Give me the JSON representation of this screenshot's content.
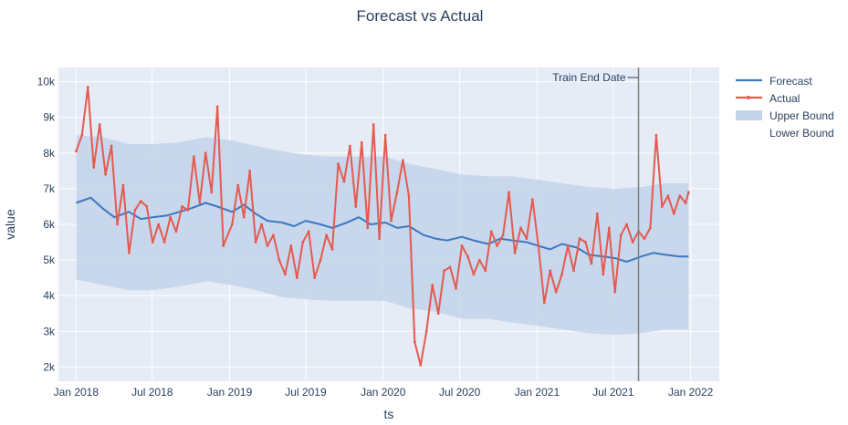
{
  "chart_data": {
    "type": "line",
    "title": "Forecast vs Actual",
    "xlabel": "ts",
    "ylabel": "value",
    "xlim": [
      "2017-11-20",
      "2022-03-10"
    ],
    "ylim": [
      1600,
      10400
    ],
    "x_ticks": [
      "Jan 2018",
      "Jul 2018",
      "Jan 2019",
      "Jul 2019",
      "Jan 2020",
      "Jul 2020",
      "Jan 2021",
      "Jul 2021",
      "Jan 2022"
    ],
    "y_ticks": [
      "2k",
      "3k",
      "4k",
      "5k",
      "6k",
      "7k",
      "8k",
      "9k",
      "10k"
    ],
    "y_tick_values": [
      2000,
      3000,
      4000,
      5000,
      6000,
      7000,
      8000,
      9000,
      10000
    ],
    "x_tick_dates": [
      "2018-01-01",
      "2018-07-01",
      "2019-01-01",
      "2019-07-01",
      "2020-01-01",
      "2020-07-01",
      "2021-01-01",
      "2021-07-01",
      "2022-01-01"
    ],
    "grid": true,
    "legend_position": "top-right",
    "annotation": {
      "label": "Train End Date",
      "date": "2021-08-30"
    },
    "colors": {
      "forecast": "#3a78c2",
      "actual": "#e45a4f",
      "band": "#c3d4ea",
      "plot_bg": "#e5ecf6",
      "grid": "#ffffff",
      "vline": "#7f7f7f"
    },
    "series": [
      {
        "name": "Forecast",
        "x": [
          "2018-01-01",
          "2018-02-05",
          "2018-03-05",
          "2018-04-02",
          "2018-05-07",
          "2018-06-04",
          "2018-07-02",
          "2018-08-06",
          "2018-09-03",
          "2018-10-01",
          "2018-11-05",
          "2018-12-03",
          "2019-01-07",
          "2019-02-04",
          "2019-03-04",
          "2019-04-01",
          "2019-05-06",
          "2019-06-03",
          "2019-07-01",
          "2019-08-05",
          "2019-09-02",
          "2019-10-07",
          "2019-11-04",
          "2019-12-02",
          "2020-01-06",
          "2020-02-03",
          "2020-03-02",
          "2020-04-06",
          "2020-05-04",
          "2020-06-01",
          "2020-07-06",
          "2020-08-03",
          "2020-09-07",
          "2020-10-05",
          "2020-11-02",
          "2020-12-07",
          "2021-01-04",
          "2021-02-01",
          "2021-03-01",
          "2021-04-05",
          "2021-05-03",
          "2021-06-07",
          "2021-07-05",
          "2021-08-02",
          "2021-09-06",
          "2021-10-04",
          "2021-11-01",
          "2021-12-06",
          "2021-12-27"
        ],
        "values": [
          6600,
          6750,
          6450,
          6200,
          6350,
          6150,
          6200,
          6250,
          6350,
          6450,
          6600,
          6500,
          6350,
          6550,
          6300,
          6100,
          6050,
          5950,
          6100,
          6000,
          5900,
          6050,
          6200,
          6000,
          6050,
          5900,
          5950,
          5700,
          5600,
          5550,
          5650,
          5550,
          5450,
          5600,
          5550,
          5500,
          5400,
          5300,
          5450,
          5350,
          5150,
          5100,
          5050,
          4950,
          5100,
          5200,
          5150,
          5100,
          5100
        ]
      },
      {
        "name": "Actual",
        "x": [
          "2018-01-01",
          "2018-01-15",
          "2018-01-29",
          "2018-02-12",
          "2018-02-26",
          "2018-03-12",
          "2018-03-26",
          "2018-04-09",
          "2018-04-23",
          "2018-05-07",
          "2018-05-21",
          "2018-06-04",
          "2018-06-18",
          "2018-07-02",
          "2018-07-16",
          "2018-07-30",
          "2018-08-13",
          "2018-08-27",
          "2018-09-10",
          "2018-09-24",
          "2018-10-08",
          "2018-10-22",
          "2018-11-05",
          "2018-11-19",
          "2018-12-03",
          "2018-12-17",
          "2019-01-07",
          "2019-01-21",
          "2019-02-04",
          "2019-02-18",
          "2019-03-04",
          "2019-03-18",
          "2019-04-01",
          "2019-04-15",
          "2019-04-29",
          "2019-05-13",
          "2019-05-27",
          "2019-06-10",
          "2019-06-24",
          "2019-07-08",
          "2019-07-22",
          "2019-08-05",
          "2019-08-19",
          "2019-09-02",
          "2019-09-16",
          "2019-09-30",
          "2019-10-14",
          "2019-10-28",
          "2019-11-11",
          "2019-11-25",
          "2019-12-09",
          "2019-12-23",
          "2020-01-06",
          "2020-01-20",
          "2020-02-03",
          "2020-02-17",
          "2020-03-02",
          "2020-03-16",
          "2020-03-30",
          "2020-04-13",
          "2020-04-27",
          "2020-05-11",
          "2020-05-25",
          "2020-06-08",
          "2020-06-22",
          "2020-07-06",
          "2020-07-20",
          "2020-08-03",
          "2020-08-17",
          "2020-08-31",
          "2020-09-14",
          "2020-09-28",
          "2020-10-12",
          "2020-10-26",
          "2020-11-09",
          "2020-11-23",
          "2020-12-07",
          "2020-12-21",
          "2021-01-04",
          "2021-01-18",
          "2021-02-01",
          "2021-02-15",
          "2021-03-01",
          "2021-03-15",
          "2021-03-29",
          "2021-04-12",
          "2021-04-26",
          "2021-05-10",
          "2021-05-24",
          "2021-06-07",
          "2021-06-21",
          "2021-07-05",
          "2021-07-19",
          "2021-08-02",
          "2021-08-16",
          "2021-08-30",
          "2021-09-13",
          "2021-09-27",
          "2021-10-11",
          "2021-10-25",
          "2021-11-08",
          "2021-11-22",
          "2021-12-06",
          "2021-12-20",
          "2021-12-27"
        ],
        "values": [
          8050,
          8500,
          9850,
          7600,
          8800,
          7400,
          8200,
          6000,
          7100,
          5200,
          6400,
          6650,
          6500,
          5500,
          6000,
          5500,
          6200,
          5800,
          6500,
          6400,
          7900,
          6600,
          8000,
          6900,
          9300,
          5400,
          6000,
          7100,
          6200,
          7500,
          5500,
          6000,
          5400,
          5700,
          5000,
          4600,
          5400,
          4500,
          5500,
          5800,
          4500,
          5000,
          5700,
          5300,
          7700,
          7200,
          8200,
          6500,
          8300,
          5900,
          8800,
          5600,
          8500,
          6100,
          6900,
          7800,
          6800,
          2700,
          2050,
          3000,
          4300,
          3500,
          4700,
          4800,
          4200,
          5400,
          5100,
          4600,
          5000,
          4700,
          5800,
          5400,
          5700,
          6900,
          5200,
          5900,
          5600,
          6700,
          5400,
          3800,
          4700,
          4100,
          4600,
          5400,
          4700,
          5600,
          5500,
          4900,
          6300,
          4600,
          5900,
          4100,
          5700,
          6000,
          5500,
          5800,
          5600,
          5900,
          8500,
          6500,
          6800,
          6300,
          6800,
          6600,
          6900
        ]
      },
      {
        "name": "Upper Bound",
        "x": [
          "2018-01-01",
          "2018-03-05",
          "2018-05-07",
          "2018-07-02",
          "2018-09-03",
          "2018-11-05",
          "2019-01-07",
          "2019-03-04",
          "2019-05-06",
          "2019-07-01",
          "2019-09-02",
          "2019-11-04",
          "2020-01-06",
          "2020-03-02",
          "2020-05-04",
          "2020-07-06",
          "2020-09-07",
          "2020-11-02",
          "2021-01-04",
          "2021-03-01",
          "2021-05-03",
          "2021-07-05",
          "2021-09-06",
          "2021-11-01",
          "2021-12-27"
        ],
        "values": [
          8500,
          8450,
          8250,
          8250,
          8300,
          8450,
          8350,
          8200,
          8050,
          7950,
          7900,
          7900,
          7900,
          7700,
          7550,
          7400,
          7350,
          7350,
          7250,
          7150,
          7050,
          7000,
          7050,
          7150,
          7150
        ]
      },
      {
        "name": "Lower Bound",
        "x": [
          "2018-01-01",
          "2018-03-05",
          "2018-05-07",
          "2018-07-02",
          "2018-09-03",
          "2018-11-05",
          "2019-01-07",
          "2019-03-04",
          "2019-05-06",
          "2019-07-01",
          "2019-09-02",
          "2019-11-04",
          "2020-01-06",
          "2020-03-02",
          "2020-05-04",
          "2020-07-06",
          "2020-09-07",
          "2020-11-02",
          "2021-01-04",
          "2021-03-01",
          "2021-05-03",
          "2021-07-05",
          "2021-09-06",
          "2021-11-01",
          "2021-12-27"
        ],
        "values": [
          4450,
          4300,
          4150,
          4150,
          4250,
          4400,
          4300,
          4150,
          3950,
          3900,
          3850,
          3850,
          3850,
          3650,
          3550,
          3350,
          3350,
          3250,
          3150,
          3050,
          2950,
          2900,
          2950,
          3050,
          3050
        ]
      }
    ]
  }
}
